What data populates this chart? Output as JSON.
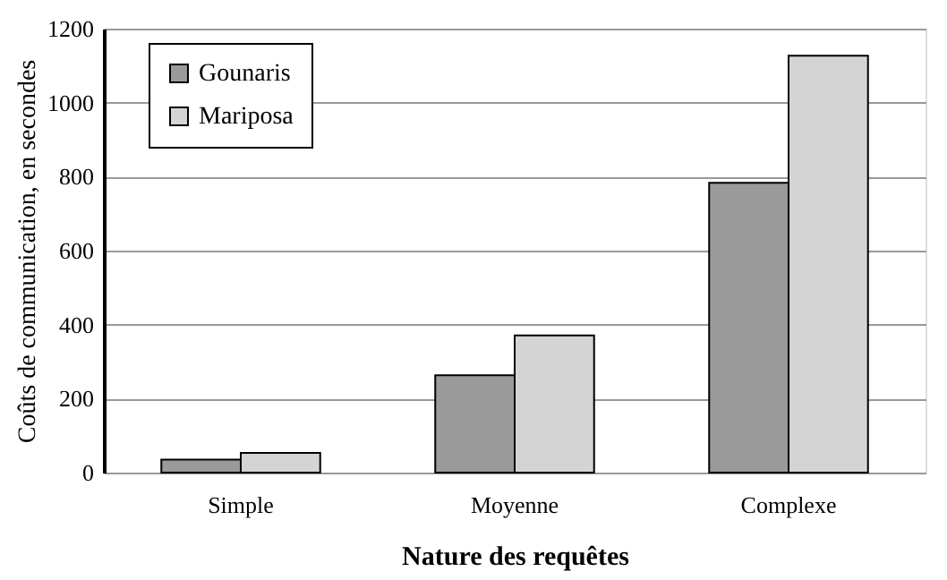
{
  "chart_data": {
    "type": "bar",
    "xlabel": "Nature des requêtes",
    "ylabel": "Coûts de communication, en secondes",
    "categories": [
      "Simple",
      "Moyenne",
      "Complexe"
    ],
    "series": [
      {
        "name": "Gounaris",
        "color": "#9a9a9a",
        "values": [
          35,
          263,
          783
        ]
      },
      {
        "name": "Mariposa",
        "color": "#d4d4d4",
        "values": [
          53,
          371,
          1127
        ]
      }
    ],
    "ylim": [
      0,
      1200
    ],
    "yticks": [
      0,
      200,
      400,
      600,
      800,
      1000,
      1200
    ],
    "grid": "y",
    "legend": "top left"
  }
}
